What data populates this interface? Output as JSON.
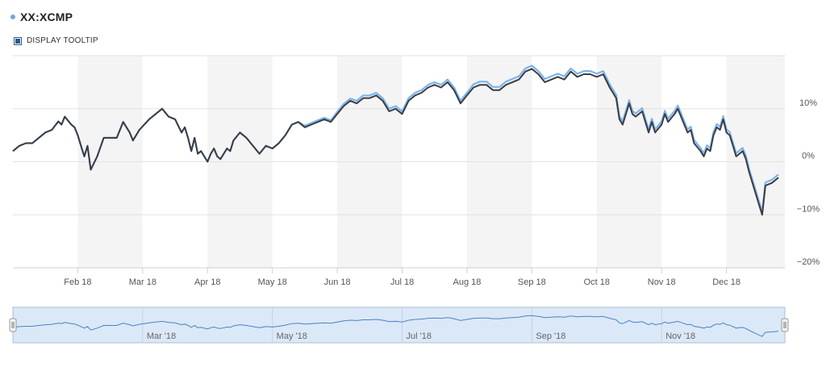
{
  "header": {
    "title": "XX:XCMP",
    "dot_color": "#6aa8dc",
    "tooltip_label": "DISPLAY TOOLTIP",
    "tooltip_checked": true
  },
  "chart_data": {
    "type": "line",
    "title": "",
    "xlabel": "",
    "ylabel": "",
    "ylim": [
      -20,
      20
    ],
    "y_ticks": [
      "10%",
      "0%",
      "−10%",
      "−20%"
    ],
    "y_tick_values": [
      10,
      0,
      -10,
      -20
    ],
    "x_ticks": [
      "Feb 18",
      "Mar 18",
      "Apr 18",
      "May 18",
      "Jun 18",
      "Jul 18",
      "Aug 18",
      "Sep 18",
      "Oct 18",
      "Nov 18",
      "Dec 18"
    ],
    "x_tick_months": [
      1,
      2,
      3,
      4,
      5,
      6,
      7,
      8,
      9,
      10,
      11
    ],
    "x_range_months": [
      0,
      11.9
    ],
    "shaded_months": [
      1,
      3,
      5,
      7,
      9,
      11
    ],
    "grid": true,
    "colors": {
      "series_1": "#3a3d45",
      "series_2": "#7cb5ec",
      "band": "#f4f4f4",
      "grid": "#e2e2e2"
    },
    "series": [
      {
        "values": [
          [
            0.0,
            2.0
          ],
          [
            0.1,
            3.0
          ],
          [
            0.2,
            3.5
          ],
          [
            0.3,
            3.5
          ],
          [
            0.4,
            4.5
          ],
          [
            0.5,
            5.5
          ],
          [
            0.6,
            6.0
          ],
          [
            0.7,
            7.6
          ],
          [
            0.75,
            7.0
          ],
          [
            0.8,
            8.5
          ],
          [
            0.9,
            7.0
          ],
          [
            0.95,
            6.5
          ],
          [
            1.0,
            5.0
          ],
          [
            1.05,
            3.0
          ],
          [
            1.1,
            1.0
          ],
          [
            1.15,
            3.0
          ],
          [
            1.2,
            -1.5
          ],
          [
            1.3,
            1.0
          ],
          [
            1.4,
            4.5
          ],
          [
            1.5,
            4.5
          ],
          [
            1.6,
            4.5
          ],
          [
            1.7,
            7.5
          ],
          [
            1.8,
            5.5
          ],
          [
            1.85,
            4.0
          ],
          [
            1.95,
            6.0
          ],
          [
            2.1,
            8.0
          ],
          [
            2.3,
            10.0
          ],
          [
            2.4,
            8.5
          ],
          [
            2.5,
            8.0
          ],
          [
            2.6,
            5.5
          ],
          [
            2.65,
            6.5
          ],
          [
            2.7,
            4.5
          ],
          [
            2.75,
            2.0
          ],
          [
            2.8,
            4.5
          ],
          [
            2.85,
            1.5
          ],
          [
            2.9,
            2.0
          ],
          [
            3.0,
            0.0
          ],
          [
            3.05,
            1.5
          ],
          [
            3.1,
            2.5
          ],
          [
            3.15,
            1.0
          ],
          [
            3.2,
            0.5
          ],
          [
            3.3,
            2.5
          ],
          [
            3.35,
            2.0
          ],
          [
            3.4,
            4.0
          ],
          [
            3.5,
            5.5
          ],
          [
            3.6,
            4.5
          ],
          [
            3.7,
            3.0
          ],
          [
            3.8,
            1.5
          ],
          [
            3.9,
            3.0
          ],
          [
            4.0,
            2.5
          ],
          [
            4.1,
            3.5
          ],
          [
            4.2,
            5.0
          ],
          [
            4.3,
            7.0
          ],
          [
            4.4,
            7.5
          ],
          [
            4.5,
            6.5
          ],
          [
            4.6,
            7.0
          ],
          [
            4.7,
            7.5
          ],
          [
            4.8,
            8.0
          ],
          [
            4.9,
            7.5
          ],
          [
            5.0,
            9.0
          ],
          [
            5.1,
            10.5
          ],
          [
            5.2,
            11.5
          ],
          [
            5.3,
            11.0
          ],
          [
            5.4,
            12.0
          ],
          [
            5.5,
            12.0
          ],
          [
            5.6,
            12.5
          ],
          [
            5.7,
            11.5
          ],
          [
            5.8,
            9.5
          ],
          [
            5.9,
            10.0
          ],
          [
            6.0,
            9.0
          ],
          [
            6.1,
            11.5
          ],
          [
            6.2,
            12.5
          ],
          [
            6.3,
            13.0
          ],
          [
            6.4,
            14.0
          ],
          [
            6.5,
            14.5
          ],
          [
            6.6,
            14.0
          ],
          [
            6.7,
            15.0
          ],
          [
            6.8,
            13.5
          ],
          [
            6.9,
            11.0
          ],
          [
            7.0,
            12.5
          ],
          [
            7.1,
            14.0
          ],
          [
            7.2,
            14.5
          ],
          [
            7.3,
            14.5
          ],
          [
            7.4,
            13.5
          ],
          [
            7.5,
            13.5
          ],
          [
            7.6,
            14.5
          ],
          [
            7.7,
            15.0
          ],
          [
            7.8,
            15.5
          ],
          [
            7.9,
            17.0
          ],
          [
            8.0,
            17.5
          ],
          [
            8.1,
            16.5
          ],
          [
            8.2,
            15.0
          ],
          [
            8.3,
            15.5
          ],
          [
            8.4,
            16.0
          ],
          [
            8.5,
            15.5
          ],
          [
            8.6,
            17.0
          ],
          [
            8.7,
            16.0
          ],
          [
            8.8,
            16.5
          ],
          [
            8.9,
            16.5
          ],
          [
            9.0,
            16.0
          ],
          [
            9.1,
            16.5
          ],
          [
            9.2,
            14.0
          ],
          [
            9.3,
            12.0
          ],
          [
            9.35,
            8.0
          ],
          [
            9.4,
            7.0
          ],
          [
            9.5,
            11.0
          ],
          [
            9.55,
            9.0
          ],
          [
            9.6,
            8.5
          ],
          [
            9.7,
            9.5
          ],
          [
            9.8,
            5.5
          ],
          [
            9.85,
            7.5
          ],
          [
            9.9,
            5.5
          ],
          [
            10.0,
            7.0
          ],
          [
            10.05,
            9.0
          ],
          [
            10.1,
            7.5
          ],
          [
            10.2,
            9.0
          ],
          [
            10.25,
            10.0
          ],
          [
            10.3,
            8.5
          ],
          [
            10.35,
            7.0
          ],
          [
            10.4,
            5.5
          ],
          [
            10.45,
            6.0
          ],
          [
            10.5,
            3.5
          ],
          [
            10.6,
            2.0
          ],
          [
            10.65,
            1.0
          ],
          [
            10.7,
            2.5
          ],
          [
            10.75,
            2.0
          ],
          [
            10.8,
            5.0
          ],
          [
            10.85,
            6.5
          ],
          [
            10.9,
            6.0
          ],
          [
            10.95,
            8.0
          ],
          [
            11.0,
            5.5
          ],
          [
            11.05,
            5.0
          ],
          [
            11.1,
            3.0
          ],
          [
            11.15,
            1.0
          ],
          [
            11.2,
            1.5
          ],
          [
            11.25,
            2.0
          ],
          [
            11.3,
            0.5
          ],
          [
            11.35,
            -2.0
          ],
          [
            11.4,
            -4.0
          ],
          [
            11.45,
            -6.0
          ],
          [
            11.5,
            -8.0
          ],
          [
            11.55,
            -10.0
          ],
          [
            11.6,
            -4.5
          ],
          [
            11.7,
            -4.0
          ],
          [
            11.8,
            -3.0
          ]
        ]
      },
      {
        "values": [
          [
            0.0,
            2.0
          ],
          [
            0.1,
            3.0
          ],
          [
            0.2,
            3.5
          ],
          [
            0.3,
            3.5
          ],
          [
            0.4,
            4.5
          ],
          [
            0.5,
            5.5
          ],
          [
            0.6,
            6.0
          ],
          [
            0.7,
            7.6
          ],
          [
            0.75,
            7.0
          ],
          [
            0.8,
            8.5
          ],
          [
            0.9,
            7.0
          ],
          [
            0.95,
            6.5
          ],
          [
            1.0,
            5.0
          ],
          [
            1.05,
            3.0
          ],
          [
            1.1,
            1.0
          ],
          [
            1.15,
            3.0
          ],
          [
            1.2,
            -1.5
          ],
          [
            1.3,
            1.0
          ],
          [
            1.4,
            4.5
          ],
          [
            1.5,
            4.5
          ],
          [
            1.6,
            4.5
          ],
          [
            1.7,
            7.5
          ],
          [
            1.8,
            5.5
          ],
          [
            1.85,
            4.0
          ],
          [
            1.95,
            6.0
          ],
          [
            2.1,
            8.0
          ],
          [
            2.3,
            10.0
          ],
          [
            2.4,
            8.5
          ],
          [
            2.5,
            8.0
          ],
          [
            2.6,
            5.5
          ],
          [
            2.65,
            6.5
          ],
          [
            2.7,
            4.5
          ],
          [
            2.75,
            2.0
          ],
          [
            2.8,
            4.5
          ],
          [
            2.85,
            1.5
          ],
          [
            2.9,
            2.0
          ],
          [
            3.0,
            0.0
          ],
          [
            3.05,
            1.5
          ],
          [
            3.1,
            2.5
          ],
          [
            3.15,
            1.0
          ],
          [
            3.2,
            0.5
          ],
          [
            3.3,
            2.5
          ],
          [
            3.35,
            2.0
          ],
          [
            3.4,
            4.0
          ],
          [
            3.5,
            5.5
          ],
          [
            3.6,
            4.5
          ],
          [
            3.7,
            3.0
          ],
          [
            3.8,
            1.5
          ],
          [
            3.9,
            3.0
          ],
          [
            4.0,
            2.5
          ],
          [
            4.1,
            3.5
          ],
          [
            4.2,
            5.0
          ],
          [
            4.3,
            7.0
          ],
          [
            4.4,
            7.5
          ],
          [
            4.5,
            6.8
          ],
          [
            4.6,
            7.3
          ],
          [
            4.7,
            7.8
          ],
          [
            4.8,
            8.3
          ],
          [
            4.9,
            7.8
          ],
          [
            5.0,
            9.4
          ],
          [
            5.1,
            10.9
          ],
          [
            5.2,
            11.9
          ],
          [
            5.3,
            11.5
          ],
          [
            5.4,
            12.5
          ],
          [
            5.5,
            12.5
          ],
          [
            5.6,
            13.0
          ],
          [
            5.7,
            12.0
          ],
          [
            5.8,
            10.0
          ],
          [
            5.9,
            10.5
          ],
          [
            6.0,
            9.5
          ],
          [
            6.1,
            12.0
          ],
          [
            6.2,
            13.0
          ],
          [
            6.3,
            13.5
          ],
          [
            6.4,
            14.5
          ],
          [
            6.5,
            15.0
          ],
          [
            6.6,
            14.5
          ],
          [
            6.7,
            15.5
          ],
          [
            6.8,
            14.0
          ],
          [
            6.9,
            11.5
          ],
          [
            7.0,
            13.0
          ],
          [
            7.1,
            14.6
          ],
          [
            7.2,
            15.1
          ],
          [
            7.3,
            15.1
          ],
          [
            7.4,
            14.1
          ],
          [
            7.5,
            14.1
          ],
          [
            7.6,
            15.1
          ],
          [
            7.7,
            15.6
          ],
          [
            7.8,
            16.1
          ],
          [
            7.9,
            17.6
          ],
          [
            8.0,
            18.1
          ],
          [
            8.1,
            17.1
          ],
          [
            8.2,
            15.6
          ],
          [
            8.3,
            16.1
          ],
          [
            8.4,
            16.6
          ],
          [
            8.5,
            16.1
          ],
          [
            8.6,
            17.6
          ],
          [
            8.7,
            16.6
          ],
          [
            8.8,
            17.1
          ],
          [
            8.9,
            17.1
          ],
          [
            9.0,
            16.6
          ],
          [
            9.1,
            17.1
          ],
          [
            9.2,
            14.6
          ],
          [
            9.3,
            12.6
          ],
          [
            9.35,
            8.6
          ],
          [
            9.4,
            7.6
          ],
          [
            9.5,
            11.6
          ],
          [
            9.55,
            9.6
          ],
          [
            9.6,
            9.1
          ],
          [
            9.7,
            10.1
          ],
          [
            9.8,
            6.1
          ],
          [
            9.85,
            8.1
          ],
          [
            9.9,
            6.1
          ],
          [
            10.0,
            7.6
          ],
          [
            10.05,
            9.6
          ],
          [
            10.1,
            8.1
          ],
          [
            10.2,
            9.6
          ],
          [
            10.25,
            10.6
          ],
          [
            10.3,
            9.1
          ],
          [
            10.35,
            7.6
          ],
          [
            10.4,
            6.1
          ],
          [
            10.45,
            6.6
          ],
          [
            10.5,
            4.1
          ],
          [
            10.6,
            2.6
          ],
          [
            10.65,
            1.6
          ],
          [
            10.7,
            3.1
          ],
          [
            10.75,
            2.6
          ],
          [
            10.8,
            5.6
          ],
          [
            10.85,
            7.1
          ],
          [
            10.9,
            6.6
          ],
          [
            10.95,
            8.6
          ],
          [
            11.0,
            6.1
          ],
          [
            11.05,
            5.6
          ],
          [
            11.1,
            3.6
          ],
          [
            11.15,
            1.6
          ],
          [
            11.2,
            2.1
          ],
          [
            11.25,
            2.6
          ],
          [
            11.3,
            1.1
          ],
          [
            11.35,
            -1.4
          ],
          [
            11.4,
            -3.4
          ],
          [
            11.45,
            -5.4
          ],
          [
            11.5,
            -7.4
          ],
          [
            11.55,
            -9.4
          ],
          [
            11.6,
            -3.9
          ],
          [
            11.7,
            -3.4
          ],
          [
            11.8,
            -2.4
          ]
        ]
      }
    ]
  },
  "navigator": {
    "labels": [
      "Mar '18",
      "May '18",
      "Jul '18",
      "Sep '18",
      "Nov '18"
    ],
    "label_months": [
      2,
      4,
      6,
      8,
      10
    ],
    "fill_color": "#dbe8f7",
    "line_color": "#4a83c6"
  }
}
